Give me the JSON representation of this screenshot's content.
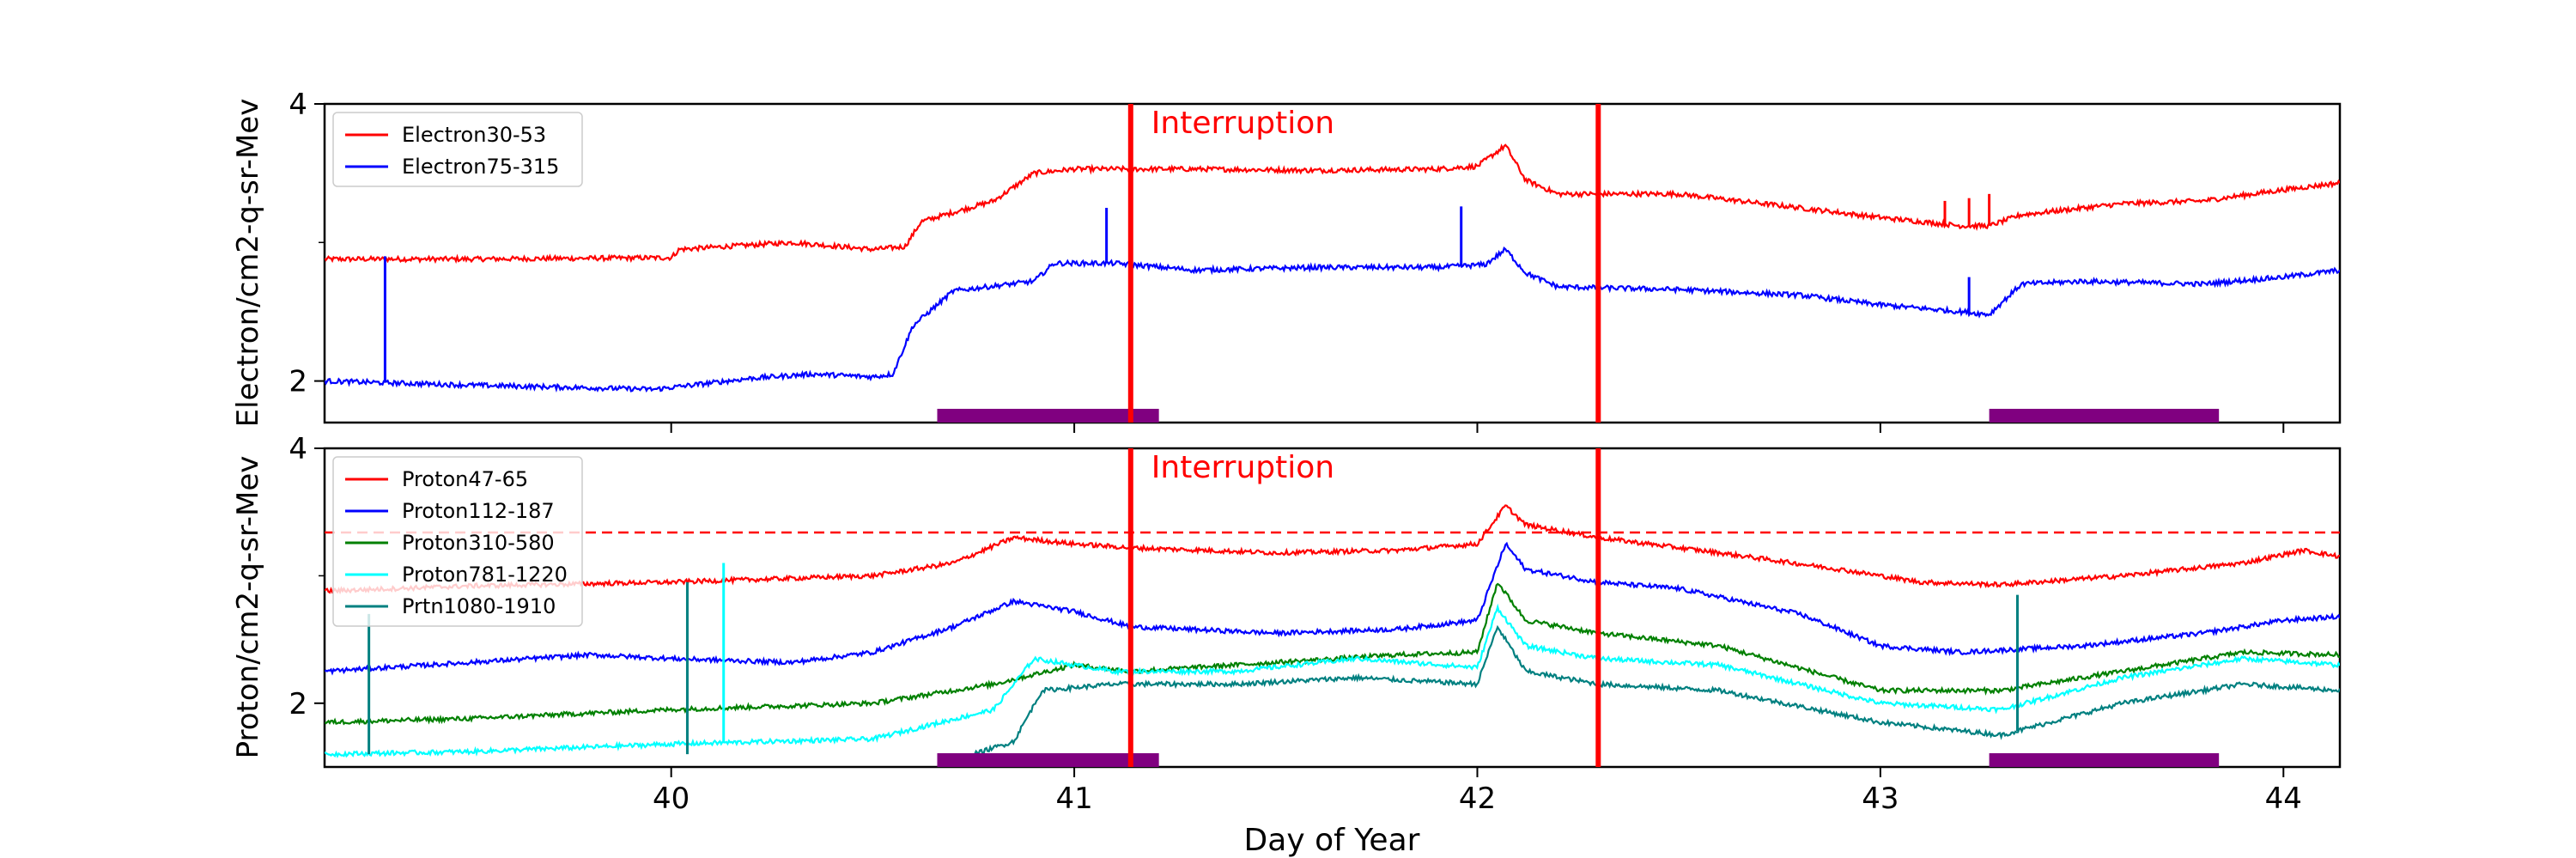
{
  "chart_data": [
    {
      "type": "line",
      "panel": "top",
      "ylabel": "Electron/cm2-q-sr-Mev",
      "xlim": [
        39.14,
        44.14
      ],
      "ylim": [
        1.7,
        4.0
      ],
      "yticks": [
        {
          "value": 2,
          "label": "2"
        },
        {
          "value": 4,
          "label": "4"
        }
      ],
      "yticks_minor": [
        3
      ],
      "legend_position": "top-left",
      "annotation": "Interruption",
      "interruption_lines": [
        41.14,
        42.3
      ],
      "purple_bars": [
        [
          40.66,
          41.21
        ],
        [
          43.27,
          43.84
        ]
      ],
      "series": [
        {
          "name": "Electron30-53",
          "color": "#ff0000",
          "points": [
            [
              39.14,
              2.88
            ],
            [
              39.5,
              2.88
            ],
            [
              40.0,
              2.89
            ],
            [
              40.02,
              2.95
            ],
            [
              40.3,
              3.0
            ],
            [
              40.5,
              2.95
            ],
            [
              40.58,
              2.97
            ],
            [
              40.62,
              3.15
            ],
            [
              40.8,
              3.3
            ],
            [
              40.9,
              3.5
            ],
            [
              41.0,
              3.53
            ],
            [
              41.3,
              3.53
            ],
            [
              41.6,
              3.52
            ],
            [
              41.9,
              3.53
            ],
            [
              42.0,
              3.55
            ],
            [
              42.07,
              3.7
            ],
            [
              42.12,
              3.45
            ],
            [
              42.2,
              3.35
            ],
            [
              42.5,
              3.35
            ],
            [
              42.8,
              3.25
            ],
            [
              43.0,
              3.18
            ],
            [
              43.2,
              3.12
            ],
            [
              43.27,
              3.12
            ],
            [
              43.35,
              3.2
            ],
            [
              43.6,
              3.28
            ],
            [
              43.8,
              3.3
            ],
            [
              44.0,
              3.38
            ],
            [
              44.14,
              3.43
            ]
          ]
        },
        {
          "name": "Electron75-315",
          "color": "#0000ff",
          "points": [
            [
              39.14,
              2.0
            ],
            [
              39.5,
              1.97
            ],
            [
              39.96,
              1.94
            ],
            [
              40.2,
              2.02
            ],
            [
              40.35,
              2.05
            ],
            [
              40.5,
              2.03
            ],
            [
              40.55,
              2.05
            ],
            [
              40.6,
              2.4
            ],
            [
              40.7,
              2.65
            ],
            [
              40.9,
              2.72
            ],
            [
              40.95,
              2.85
            ],
            [
              41.1,
              2.85
            ],
            [
              41.3,
              2.8
            ],
            [
              41.6,
              2.82
            ],
            [
              41.9,
              2.82
            ],
            [
              42.02,
              2.84
            ],
            [
              42.07,
              2.95
            ],
            [
              42.12,
              2.78
            ],
            [
              42.2,
              2.68
            ],
            [
              42.5,
              2.66
            ],
            [
              42.8,
              2.62
            ],
            [
              43.0,
              2.55
            ],
            [
              43.2,
              2.5
            ],
            [
              43.27,
              2.48
            ],
            [
              43.35,
              2.7
            ],
            [
              43.5,
              2.72
            ],
            [
              43.8,
              2.7
            ],
            [
              44.0,
              2.75
            ],
            [
              44.14,
              2.8
            ]
          ]
        }
      ],
      "spikes": [
        {
          "series": 1,
          "x": 39.29,
          "y": 2.9
        },
        {
          "series": 1,
          "x": 41.08,
          "y": 3.25
        },
        {
          "series": 1,
          "x": 41.96,
          "y": 3.26
        },
        {
          "series": 1,
          "x": 43.22,
          "y": 2.75
        },
        {
          "series": 0,
          "x": 43.16,
          "y": 3.3
        },
        {
          "series": 0,
          "x": 43.22,
          "y": 3.32
        },
        {
          "series": 0,
          "x": 43.27,
          "y": 3.35
        }
      ],
      "xticks": [
        40,
        41,
        42,
        43,
        44
      ]
    },
    {
      "type": "line",
      "panel": "bottom",
      "ylabel": "Proton/cm2-q-sr-Mev",
      "xlabel": "Day of Year",
      "xlim": [
        39.14,
        44.14
      ],
      "ylim": [
        1.5,
        4.0
      ],
      "yticks": [
        {
          "value": 2,
          "label": "2"
        },
        {
          "value": 4,
          "label": "4"
        }
      ],
      "yticks_minor": [
        3
      ],
      "xticks": [
        {
          "value": 40,
          "label": "40"
        },
        {
          "value": 41,
          "label": "41"
        },
        {
          "value": 42,
          "label": "42"
        },
        {
          "value": 43,
          "label": "43"
        },
        {
          "value": 44,
          "label": "44"
        }
      ],
      "legend_position": "top-left",
      "annotation": "Interruption",
      "interruption_lines": [
        41.14,
        42.3
      ],
      "purple_bars": [
        [
          40.66,
          41.21
        ],
        [
          43.27,
          43.84
        ]
      ],
      "reference_line": {
        "y": 3.34,
        "color": "#ff0000",
        "style": "dashed"
      },
      "series": [
        {
          "name": "Proton47-65",
          "color": "#ff0000",
          "points": [
            [
              39.14,
              2.88
            ],
            [
              39.5,
              2.92
            ],
            [
              40.0,
              2.95
            ],
            [
              40.5,
              3.0
            ],
            [
              40.7,
              3.1
            ],
            [
              40.85,
              3.3
            ],
            [
              41.0,
              3.25
            ],
            [
              41.14,
              3.22
            ],
            [
              41.5,
              3.18
            ],
            [
              41.8,
              3.2
            ],
            [
              42.0,
              3.25
            ],
            [
              42.07,
              3.55
            ],
            [
              42.12,
              3.4
            ],
            [
              42.3,
              3.3
            ],
            [
              42.6,
              3.18
            ],
            [
              42.9,
              3.05
            ],
            [
              43.1,
              2.95
            ],
            [
              43.3,
              2.93
            ],
            [
              43.6,
              3.0
            ],
            [
              43.9,
              3.1
            ],
            [
              44.05,
              3.2
            ],
            [
              44.14,
              3.15
            ]
          ]
        },
        {
          "name": "Proton112-187",
          "color": "#0000ff",
          "points": [
            [
              39.14,
              2.25
            ],
            [
              39.5,
              2.32
            ],
            [
              39.8,
              2.38
            ],
            [
              40.0,
              2.35
            ],
            [
              40.3,
              2.32
            ],
            [
              40.5,
              2.4
            ],
            [
              40.7,
              2.6
            ],
            [
              40.85,
              2.8
            ],
            [
              41.0,
              2.72
            ],
            [
              41.14,
              2.6
            ],
            [
              41.5,
              2.55
            ],
            [
              41.8,
              2.58
            ],
            [
              42.0,
              2.65
            ],
            [
              42.07,
              3.25
            ],
            [
              42.12,
              3.05
            ],
            [
              42.3,
              2.95
            ],
            [
              42.5,
              2.9
            ],
            [
              42.8,
              2.7
            ],
            [
              43.0,
              2.45
            ],
            [
              43.2,
              2.4
            ],
            [
              43.5,
              2.45
            ],
            [
              43.8,
              2.55
            ],
            [
              44.0,
              2.65
            ],
            [
              44.14,
              2.68
            ]
          ]
        },
        {
          "name": "Proton310-580",
          "color": "#008000",
          "points": [
            [
              39.14,
              1.85
            ],
            [
              39.5,
              1.88
            ],
            [
              40.0,
              1.95
            ],
            [
              40.5,
              2.0
            ],
            [
              40.8,
              2.15
            ],
            [
              41.0,
              2.3
            ],
            [
              41.14,
              2.25
            ],
            [
              41.5,
              2.32
            ],
            [
              41.8,
              2.38
            ],
            [
              42.0,
              2.4
            ],
            [
              42.05,
              2.95
            ],
            [
              42.12,
              2.65
            ],
            [
              42.3,
              2.55
            ],
            [
              42.6,
              2.45
            ],
            [
              43.0,
              2.1
            ],
            [
              43.3,
              2.1
            ],
            [
              43.6,
              2.25
            ],
            [
              43.9,
              2.4
            ],
            [
              44.14,
              2.38
            ]
          ]
        },
        {
          "name": "Proton781-1220",
          "color": "#00ffff",
          "points": [
            [
              39.14,
              1.6
            ],
            [
              39.5,
              1.62
            ],
            [
              40.0,
              1.68
            ],
            [
              40.5,
              1.72
            ],
            [
              40.8,
              1.95
            ],
            [
              40.9,
              2.35
            ],
            [
              41.1,
              2.25
            ],
            [
              41.4,
              2.25
            ],
            [
              41.7,
              2.35
            ],
            [
              42.0,
              2.28
            ],
            [
              42.05,
              2.75
            ],
            [
              42.12,
              2.45
            ],
            [
              42.3,
              2.35
            ],
            [
              42.6,
              2.3
            ],
            [
              43.0,
              2.0
            ],
            [
              43.3,
              1.95
            ],
            [
              43.6,
              2.2
            ],
            [
              43.9,
              2.35
            ],
            [
              44.14,
              2.3
            ]
          ]
        },
        {
          "name": "Prtn1080-1910",
          "color": "#008080",
          "points": [
            [
              40.75,
              1.6
            ],
            [
              40.85,
              1.7
            ],
            [
              40.92,
              2.1
            ],
            [
              41.1,
              2.15
            ],
            [
              41.4,
              2.15
            ],
            [
              41.7,
              2.2
            ],
            [
              42.0,
              2.15
            ],
            [
              42.05,
              2.6
            ],
            [
              42.12,
              2.25
            ],
            [
              42.3,
              2.15
            ],
            [
              42.6,
              2.1
            ],
            [
              43.0,
              1.85
            ],
            [
              43.3,
              1.75
            ],
            [
              43.6,
              2.0
            ],
            [
              43.9,
              2.15
            ],
            [
              44.14,
              2.1
            ]
          ]
        }
      ],
      "spikes": [
        {
          "series": 4,
          "x": 39.25,
          "y": 2.7
        },
        {
          "series": 4,
          "x": 40.04,
          "y": 2.95
        },
        {
          "series": 3,
          "x": 40.13,
          "y": 3.1
        },
        {
          "series": 4,
          "x": 43.34,
          "y": 2.85
        }
      ]
    }
  ]
}
